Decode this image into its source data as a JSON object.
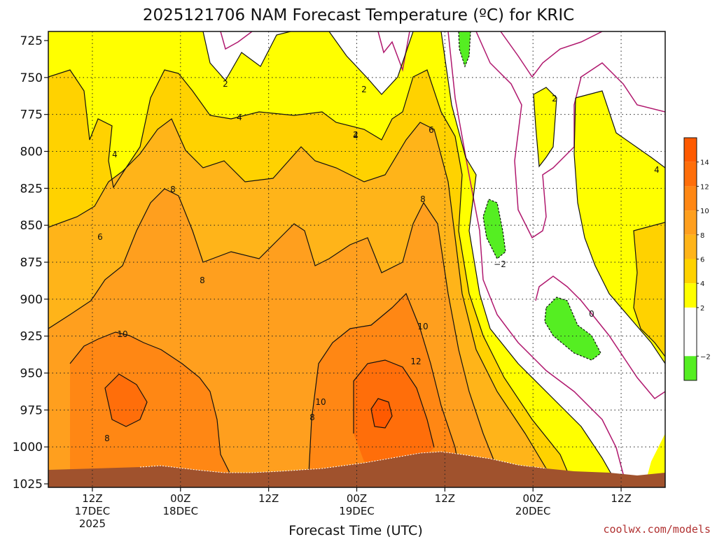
{
  "title": "2025121706 NAM Forecast Temperature (ºC) for KRIC",
  "credit": "coolwx.com/models",
  "chart_data": {
    "type": "heatmap",
    "title": "2025121706 NAM Forecast Temperature (ºC) for KRIC",
    "xlabel": "Forecast Time (UTC)",
    "ylabel": "",
    "y_axis": {
      "ticks": [
        "725",
        "750",
        "775",
        "800",
        "825",
        "850",
        "875",
        "900",
        "925",
        "950",
        "975",
        "1000",
        "1025"
      ],
      "values": [
        725,
        750,
        775,
        800,
        825,
        850,
        875,
        900,
        925,
        950,
        975,
        1000,
        1025
      ],
      "range": [
        725,
        1025
      ]
    },
    "x_axis": {
      "range_hours": [
        6,
        90
      ],
      "ticks": [
        {
          "hour": 12,
          "label": "12Z",
          "sub": "17DEC",
          "sub2": "2025"
        },
        {
          "hour": 24,
          "label": "00Z",
          "sub": "18DEC",
          "sub2": ""
        },
        {
          "hour": 36,
          "label": "12Z",
          "sub": "",
          "sub2": ""
        },
        {
          "hour": 48,
          "label": "00Z",
          "sub": "19DEC",
          "sub2": ""
        },
        {
          "hour": 60,
          "label": "12Z",
          "sub": "",
          "sub2": ""
        },
        {
          "hour": 72,
          "label": "00Z",
          "sub": "20DEC",
          "sub2": ""
        },
        {
          "hour": 84,
          "label": "12Z",
          "sub": "",
          "sub2": ""
        }
      ]
    },
    "colorbar": {
      "labels": [
        "14",
        "12",
        "10",
        "8",
        "6",
        "4",
        "2",
        "−2"
      ],
      "ticks": [
        14,
        12,
        10,
        8,
        6,
        4,
        2,
        -2
      ],
      "bins": [
        {
          "min": 14,
          "max": 16,
          "color": "#ff5a00"
        },
        {
          "min": 12,
          "max": 14,
          "color": "#ff6e0a"
        },
        {
          "min": 10,
          "max": 12,
          "color": "#ff8714"
        },
        {
          "min": 8,
          "max": 10,
          "color": "#ff9f1e"
        },
        {
          "min": 6,
          "max": 8,
          "color": "#ffb419"
        },
        {
          "min": 4,
          "max": 6,
          "color": "#ffd200"
        },
        {
          "min": 2,
          "max": 4,
          "color": "#ffff00"
        },
        {
          "min": -2,
          "max": 2,
          "color": "#ffffff"
        },
        {
          "min": -4,
          "max": -2,
          "color": "#55ee22"
        }
      ]
    },
    "contour_labels": [
      "2",
      "2",
      "4",
      "4",
      "2",
      "6",
      "4",
      "8",
      "8",
      "6",
      "8",
      "10",
      "10",
      "12",
      "8",
      "10",
      "8",
      "−2",
      "0",
      "2",
      "4"
    ],
    "grid": true,
    "terrain_color": "#a0522d"
  }
}
